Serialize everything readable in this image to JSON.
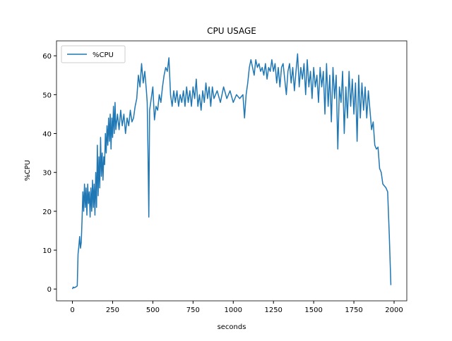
{
  "chart_data": {
    "type": "line",
    "title": "CPU USAGE",
    "x_label": "seconds",
    "y_label": "%CPU",
    "xlim": [
      -99,
      2079
    ],
    "ylim": [
      -3.04,
      63.84
    ],
    "xticks": [
      0,
      250,
      500,
      750,
      1000,
      1250,
      1500,
      1750,
      2000
    ],
    "yticks": [
      0,
      10,
      20,
      30,
      40,
      50,
      60
    ],
    "legend": "upper left",
    "x": [
      0,
      5,
      10,
      20,
      30,
      35,
      40,
      45,
      50,
      55,
      60,
      65,
      70,
      75,
      80,
      85,
      90,
      95,
      100,
      105,
      110,
      115,
      120,
      125,
      130,
      135,
      140,
      145,
      150,
      155,
      160,
      165,
      170,
      175,
      180,
      185,
      190,
      195,
      200,
      205,
      210,
      215,
      220,
      225,
      230,
      235,
      240,
      245,
      250,
      255,
      260,
      265,
      270,
      280,
      290,
      300,
      310,
      320,
      330,
      340,
      350,
      360,
      370,
      380,
      390,
      400,
      410,
      420,
      430,
      440,
      450,
      460,
      465,
      470,
      475,
      480,
      490,
      500,
      510,
      520,
      530,
      540,
      550,
      560,
      570,
      580,
      590,
      600,
      610,
      620,
      630,
      640,
      650,
      660,
      670,
      680,
      690,
      700,
      710,
      720,
      730,
      740,
      750,
      760,
      770,
      780,
      790,
      800,
      810,
      820,
      830,
      840,
      850,
      860,
      870,
      880,
      900,
      920,
      940,
      960,
      980,
      1000,
      1020,
      1040,
      1060,
      1070,
      1080,
      1090,
      1100,
      1110,
      1120,
      1130,
      1140,
      1150,
      1160,
      1170,
      1180,
      1190,
      1200,
      1210,
      1220,
      1230,
      1240,
      1250,
      1260,
      1270,
      1280,
      1290,
      1300,
      1310,
      1320,
      1330,
      1340,
      1350,
      1360,
      1370,
      1380,
      1390,
      1400,
      1410,
      1420,
      1430,
      1440,
      1450,
      1460,
      1470,
      1480,
      1490,
      1500,
      1510,
      1520,
      1530,
      1540,
      1550,
      1560,
      1570,
      1580,
      1590,
      1600,
      1610,
      1620,
      1630,
      1640,
      1650,
      1660,
      1670,
      1680,
      1690,
      1700,
      1710,
      1720,
      1730,
      1740,
      1750,
      1760,
      1770,
      1780,
      1790,
      1800,
      1810,
      1820,
      1830,
      1840,
      1850,
      1860,
      1870,
      1880,
      1890,
      1900,
      1910,
      1920,
      1930,
      1940,
      1950,
      1960,
      1970,
      1980
    ],
    "series": [
      {
        "name": "%CPU",
        "color": "#1f77b4",
        "values": [
          0,
          0.5,
          0.3,
          0.5,
          0.8,
          9,
          11,
          13.5,
          10.5,
          12,
          18,
          25,
          20,
          27,
          21,
          26,
          19,
          27,
          22,
          25,
          18.5,
          26,
          20,
          28,
          21,
          27,
          19,
          30,
          21,
          37,
          24,
          34,
          26,
          39,
          29,
          35,
          28,
          34,
          32,
          40,
          35,
          42,
          37,
          44,
          38,
          45,
          36,
          44,
          39,
          47,
          40,
          48,
          41,
          45,
          41,
          46,
          42,
          45,
          40,
          44,
          42,
          46,
          43,
          44,
          47,
          49,
          55,
          52,
          58,
          53,
          56,
          51,
          48,
          35,
          18.5,
          46,
          49,
          52,
          43.5,
          47,
          46,
          50,
          48,
          52,
          55,
          57,
          56,
          59.5,
          50,
          47,
          51,
          48,
          51,
          47,
          50,
          48,
          51,
          47,
          52,
          48,
          51,
          47,
          52,
          49,
          54,
          47,
          50,
          46,
          51,
          48,
          53,
          49,
          52,
          47,
          52,
          49,
          51,
          48,
          52,
          49,
          51,
          48,
          50,
          49,
          50,
          44,
          50,
          53,
          57,
          59,
          57,
          55,
          59,
          57,
          58,
          56,
          57,
          55,
          58,
          54,
          57,
          56,
          59,
          56,
          58,
          53,
          57,
          52,
          57,
          58,
          54,
          50,
          56,
          58,
          53,
          57,
          51,
          56,
          60.5,
          52,
          57,
          54,
          58,
          50,
          59,
          52,
          56,
          49,
          57,
          52,
          55,
          48,
          57,
          52,
          56,
          45,
          58,
          47,
          55,
          43,
          57,
          49,
          55,
          36,
          52,
          48,
          56,
          40,
          52,
          44,
          56,
          47,
          54,
          45,
          53,
          38,
          55,
          44,
          53,
          46,
          52,
          44,
          51,
          46,
          41,
          43,
          37,
          36,
          36.5,
          31,
          30,
          27,
          26.5,
          26,
          25,
          14,
          1
        ]
      }
    ]
  }
}
